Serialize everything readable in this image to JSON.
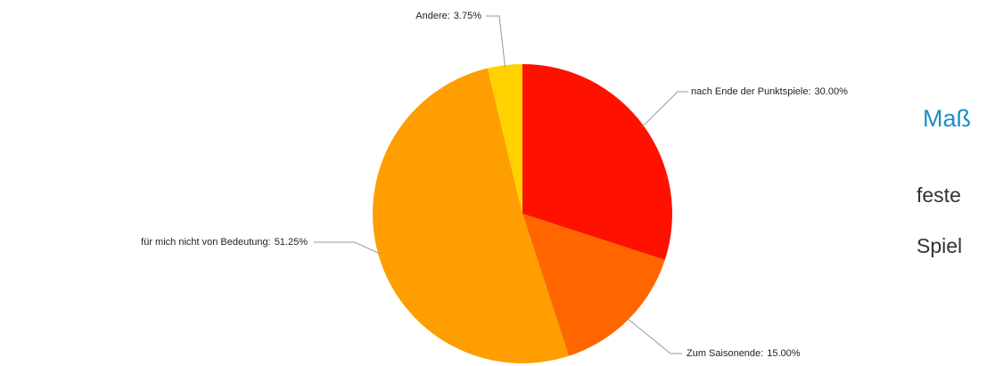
{
  "chart_data": {
    "type": "pie",
    "categories": [
      "nach Ende der Punktspiele:",
      "Zum Saisonende:",
      "für mich nicht von Bedeutung:",
      "Andere:"
    ],
    "values": [
      30,
      15,
      51.25,
      3.75
    ],
    "value_labels": [
      "30.00%",
      "15.00%",
      "51.25%",
      "3.75%"
    ],
    "colors": [
      "#ff1100",
      "#ff6600",
      "#ff9e00",
      "#ffd200"
    ]
  },
  "side_text": {
    "heading": "Maß",
    "lines": [
      "feste",
      "Spiel"
    ]
  }
}
